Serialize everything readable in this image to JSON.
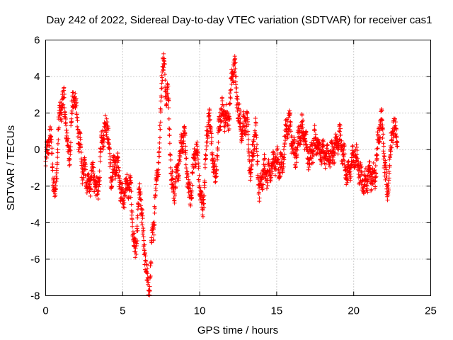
{
  "chart_data": {
    "type": "scatter",
    "title": "Day 242 of 2022, Sidereal Day-to-day VTEC variation (SDTVAR) for receiver cas1",
    "xlabel": "GPS time / hours",
    "ylabel": "SDTVAR / TECUs",
    "xlim": [
      0,
      25
    ],
    "ylim": [
      -8,
      6
    ],
    "xticks": [
      0,
      5,
      10,
      15,
      20,
      25
    ],
    "yticks": [
      -8,
      -6,
      -4,
      -2,
      0,
      2,
      4,
      6
    ],
    "grid": true,
    "marker": "+",
    "series_color": "#ff0000",
    "sample_interval_hours": 0.01,
    "sample_end_hours": 22.85,
    "profile_knots": [
      [
        0.0,
        -0.8
      ],
      [
        0.3,
        0.2
      ],
      [
        0.6,
        -1.8
      ],
      [
        0.9,
        1.6
      ],
      [
        1.2,
        2.2
      ],
      [
        1.5,
        0.3
      ],
      [
        1.8,
        2.5
      ],
      [
        2.2,
        0.5
      ],
      [
        2.5,
        -0.9
      ],
      [
        2.8,
        -2.6
      ],
      [
        3.1,
        -1.0
      ],
      [
        3.4,
        -2.0
      ],
      [
        3.7,
        0.3
      ],
      [
        4.0,
        1.8
      ],
      [
        4.3,
        -1.6
      ],
      [
        4.7,
        -1.2
      ],
      [
        5.1,
        -2.2
      ],
      [
        5.5,
        -2.6
      ],
      [
        5.8,
        -5.0
      ],
      [
        6.1,
        -2.8
      ],
      [
        6.4,
        -5.6
      ],
      [
        6.7,
        -7.2
      ],
      [
        7.0,
        -4.5
      ],
      [
        7.3,
        -1.0
      ],
      [
        7.6,
        5.2
      ],
      [
        7.9,
        2.6
      ],
      [
        8.2,
        -1.8
      ],
      [
        8.6,
        -1.0
      ],
      [
        9.0,
        0.4
      ],
      [
        9.4,
        -2.2
      ],
      [
        9.8,
        -0.5
      ],
      [
        10.2,
        -2.6
      ],
      [
        10.6,
        1.2
      ],
      [
        11.0,
        -0.8
      ],
      [
        11.4,
        1.5
      ],
      [
        11.8,
        2.2
      ],
      [
        12.2,
        4.0
      ],
      [
        12.6,
        2.0
      ],
      [
        13.0,
        1.2
      ],
      [
        13.3,
        -1.2
      ],
      [
        13.6,
        1.6
      ],
      [
        13.9,
        -2.8
      ],
      [
        14.3,
        -0.8
      ],
      [
        14.8,
        -1.2
      ],
      [
        15.3,
        -0.3
      ],
      [
        15.8,
        1.0
      ],
      [
        16.3,
        0.2
      ],
      [
        16.8,
        0.8
      ],
      [
        17.3,
        -0.4
      ],
      [
        17.8,
        0.6
      ],
      [
        18.3,
        -1.0
      ],
      [
        18.8,
        0.7
      ],
      [
        19.3,
        -0.4
      ],
      [
        19.8,
        -1.0
      ],
      [
        20.3,
        -0.6
      ],
      [
        20.8,
        -2.2
      ],
      [
        21.3,
        -1.0
      ],
      [
        21.8,
        0.9
      ],
      [
        22.2,
        -1.6
      ],
      [
        22.5,
        0.5
      ],
      [
        22.85,
        0.8
      ]
    ]
  }
}
